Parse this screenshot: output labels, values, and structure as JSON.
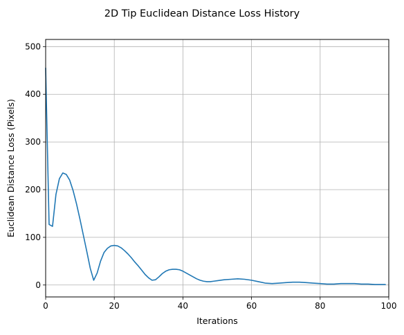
{
  "chart_data": {
    "type": "line",
    "title": "2D Tip Euclidean Distance Loss History",
    "xlabel": "Iterations",
    "ylabel": "Euclidean Distance Loss (Pixels)",
    "xlim": [
      0,
      100
    ],
    "ylim": [
      -25,
      515
    ],
    "xticks": [
      0,
      20,
      40,
      60,
      80,
      100
    ],
    "yticks": [
      0,
      100,
      200,
      300,
      400,
      500
    ],
    "grid": true,
    "line_color": "#1f77b4",
    "series": [
      {
        "x": [
          0,
          1,
          2,
          3,
          4,
          5,
          6,
          7,
          8,
          9,
          10,
          11,
          12,
          13,
          14,
          15,
          16,
          17,
          18,
          19,
          20,
          21,
          22,
          23,
          24,
          25,
          26,
          27,
          28,
          29,
          30,
          31,
          32,
          33,
          34,
          35,
          36,
          37,
          38,
          39,
          40,
          41,
          42,
          43,
          44,
          45,
          46,
          47,
          48,
          49,
          50,
          52,
          54,
          56,
          58,
          60,
          62,
          64,
          66,
          68,
          70,
          72,
          74,
          76,
          78,
          80,
          82,
          84,
          86,
          88,
          90,
          92,
          94,
          96,
          99
        ],
        "y": [
          455,
          127,
          123,
          190,
          223,
          235,
          232,
          220,
          198,
          170,
          138,
          104,
          70,
          35,
          10,
          25,
          50,
          68,
          77,
          82,
          83,
          82,
          78,
          72,
          65,
          57,
          48,
          40,
          31,
          22,
          15,
          10,
          11,
          17,
          24,
          29,
          32,
          33,
          33,
          32,
          29,
          25,
          21,
          17,
          13,
          10,
          8,
          7,
          7,
          8,
          9,
          11,
          12,
          13,
          12,
          10,
          7,
          4,
          3,
          4,
          5,
          6,
          6,
          5,
          4,
          3,
          2,
          2,
          3,
          3,
          3,
          2,
          2,
          1,
          1
        ]
      }
    ]
  }
}
